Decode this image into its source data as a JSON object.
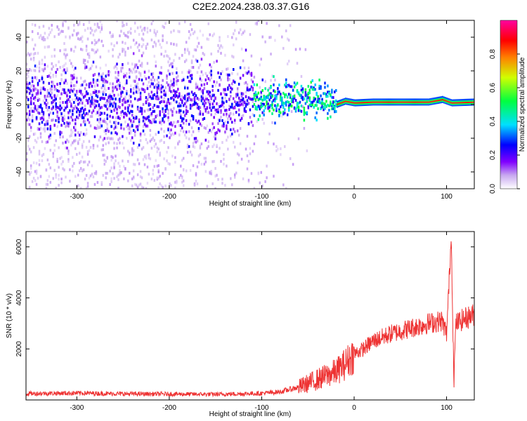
{
  "title": "C2E2.2024.238.03.37.G16",
  "chart_data": [
    {
      "type": "heatmap",
      "xlabel": "Height of straight line (km)",
      "ylabel": "Frequency (Hz)",
      "xlim": [
        -355,
        130
      ],
      "ylim": [
        -50,
        50
      ],
      "xticks": [
        -300,
        -200,
        -100,
        0,
        100
      ],
      "yticks": [
        -40,
        -20,
        0,
        20,
        40
      ],
      "colorbar": {
        "label": "Normalized spectral amplitude",
        "range": [
          0,
          1
        ],
        "ticks": [
          "0.0",
          "0.2",
          "0.4",
          "0.6",
          "0.8"
        ],
        "colormap": "rainbow (white/light violet → violet → blue → cyan → green → yellow → red → magenta)"
      },
      "ridge": {
        "description": "Noisy scatter centred near 0 Hz for heights below about -110 km, narrowing into a strong line at about 1.5 Hz above about -20 km",
        "frequency_hz": [
          {
            "x": -355,
            "f": 0
          },
          {
            "x": -100,
            "f": 2
          },
          {
            "x": -50,
            "f": 4
          },
          {
            "x": -25,
            "f": 2
          },
          {
            "x": -20,
            "f": 0
          },
          {
            "x": -10,
            "f": 2
          },
          {
            "x": 0,
            "f": 1
          },
          {
            "x": 20,
            "f": 1.5
          },
          {
            "x": 80,
            "f": 1.5
          },
          {
            "x": 95,
            "f": 3
          },
          {
            "x": 105,
            "f": 1
          },
          {
            "x": 130,
            "f": 1.5
          }
        ]
      }
    },
    {
      "type": "line",
      "xlabel": "Height of straight line (km)",
      "ylabel": "SNR (10 * v/v)",
      "xlim": [
        -355,
        130
      ],
      "ylim": [
        0,
        6600
      ],
      "xticks": [
        -300,
        -200,
        -100,
        0,
        100
      ],
      "yticks": [
        2000,
        4000,
        6000
      ],
      "color": "#ee3333",
      "series": [
        {
          "x": [
            -355,
            -300,
            -250,
            -200,
            -150,
            -100,
            -80,
            -60,
            -40,
            -20,
            -10,
            0,
            10,
            20,
            40,
            60,
            80,
            95,
            100,
            103,
            105,
            108,
            110,
            120,
            130
          ],
          "values": [
            250,
            270,
            240,
            230,
            220,
            260,
            320,
            500,
            800,
            1100,
            1400,
            1800,
            2000,
            2300,
            2600,
            2800,
            3000,
            3100,
            2600,
            4800,
            6500,
            800,
            3000,
            3200,
            3350
          ]
        }
      ]
    }
  ]
}
